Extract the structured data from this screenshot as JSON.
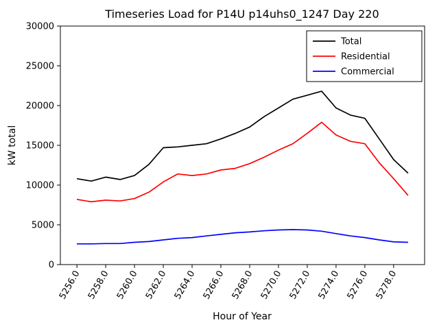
{
  "chart_data": {
    "type": "line",
    "title": "Timeseries Load for P14U p14uhs0_1247  Day 220",
    "xlabel": "Hour of Year",
    "ylabel": "kW total",
    "xlim": [
      5254.85,
      5280.15
    ],
    "ylim": [
      0,
      30000
    ],
    "grid": false,
    "legend_position": "upper right",
    "xticks": [
      5256,
      5258,
      5260,
      5262,
      5264,
      5266,
      5268,
      5270,
      5272,
      5274,
      5276,
      5278
    ],
    "xtick_labels": [
      "5256.0",
      "5258.0",
      "5260.0",
      "5262.0",
      "5264.0",
      "5266.0",
      "5268.0",
      "5270.0",
      "5272.0",
      "5274.0",
      "5276.0",
      "5278.0"
    ],
    "yticks": [
      0,
      5000,
      10000,
      15000,
      20000,
      25000,
      30000
    ],
    "ytick_labels": [
      "0",
      "5000",
      "10000",
      "15000",
      "20000",
      "25000",
      "30000"
    ],
    "x": [
      5256,
      5257,
      5258,
      5259,
      5260,
      5261,
      5262,
      5263,
      5264,
      5265,
      5266,
      5267,
      5268,
      5269,
      5270,
      5271,
      5272,
      5273,
      5274,
      5275,
      5276,
      5277,
      5278,
      5279
    ],
    "series": [
      {
        "name": "Total",
        "color": "#000000",
        "values": [
          10800,
          10500,
          11000,
          10700,
          11200,
          12600,
          14700,
          14800,
          15000,
          15200,
          15800,
          16500,
          17300,
          18600,
          19700,
          20800,
          21300,
          21800,
          19700,
          18800,
          18400,
          15800,
          13200,
          11500
        ]
      },
      {
        "name": "Residential",
        "color": "#ff0000",
        "values": [
          8200,
          7900,
          8100,
          8000,
          8300,
          9100,
          10400,
          11400,
          11200,
          11400,
          11900,
          12100,
          12700,
          13500,
          14400,
          15200,
          16500,
          17900,
          16300,
          15500,
          15200,
          12800,
          10800,
          8700
        ]
      },
      {
        "name": "Commercial",
        "color": "#0000ff",
        "values": [
          2600,
          2600,
          2650,
          2650,
          2800,
          2900,
          3100,
          3300,
          3400,
          3600,
          3800,
          4000,
          4100,
          4250,
          4350,
          4400,
          4350,
          4200,
          3900,
          3600,
          3400,
          3100,
          2850,
          2800
        ]
      }
    ]
  }
}
